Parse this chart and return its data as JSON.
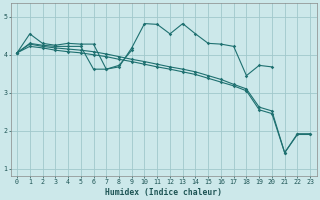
{
  "bg_color": "#cce8ea",
  "grid_color": "#a0c8cc",
  "line_color": "#1e7070",
  "xlabel": "Humidex (Indice chaleur)",
  "xlim": [
    -0.5,
    23.5
  ],
  "ylim": [
    0.8,
    5.35
  ],
  "yticks": [
    1,
    2,
    3,
    4,
    5
  ],
  "xticks": [
    0,
    1,
    2,
    3,
    4,
    5,
    6,
    7,
    8,
    9,
    10,
    11,
    12,
    13,
    14,
    15,
    16,
    17,
    18,
    19,
    20,
    21,
    22,
    23
  ],
  "series": [
    {
      "x": [
        0,
        1,
        2,
        3,
        4,
        5,
        6,
        7,
        8,
        9,
        10,
        11,
        12,
        13,
        14,
        15,
        16,
        17,
        18,
        19,
        20
      ],
      "y": [
        4.05,
        4.55,
        4.3,
        4.25,
        4.3,
        4.28,
        4.28,
        3.62,
        3.68,
        4.18,
        4.82,
        4.8,
        4.55,
        4.82,
        4.55,
        4.3,
        4.28,
        4.22,
        3.45,
        3.72,
        3.68
      ]
    },
    {
      "x": [
        0,
        1,
        2,
        3,
        4,
        5,
        6,
        7,
        8,
        9
      ],
      "y": [
        4.05,
        4.3,
        4.25,
        4.22,
        4.22,
        4.22,
        3.62,
        3.62,
        3.72,
        4.12
      ]
    },
    {
      "x": [
        0,
        1,
        2,
        3,
        4,
        5,
        6,
        7,
        8,
        9,
        10,
        11,
        12,
        13,
        14,
        15,
        16,
        17,
        18,
        19,
        20,
        21,
        22,
        23
      ],
      "y": [
        4.05,
        4.28,
        4.22,
        4.18,
        4.15,
        4.12,
        4.08,
        4.02,
        3.95,
        3.88,
        3.82,
        3.75,
        3.68,
        3.62,
        3.55,
        3.45,
        3.35,
        3.22,
        3.1,
        2.62,
        2.52,
        1.42,
        1.92,
        1.92
      ]
    },
    {
      "x": [
        0,
        1,
        2,
        3,
        4,
        5,
        6,
        7,
        8,
        9,
        10,
        11,
        12,
        13,
        14,
        15,
        16,
        17,
        18,
        19,
        20,
        21,
        22,
        23
      ],
      "y": [
        4.05,
        4.22,
        4.18,
        4.12,
        4.08,
        4.05,
        4.0,
        3.95,
        3.88,
        3.82,
        3.75,
        3.68,
        3.62,
        3.55,
        3.48,
        3.38,
        3.28,
        3.18,
        3.05,
        2.55,
        2.45,
        1.42,
        1.9,
        1.9
      ]
    }
  ]
}
